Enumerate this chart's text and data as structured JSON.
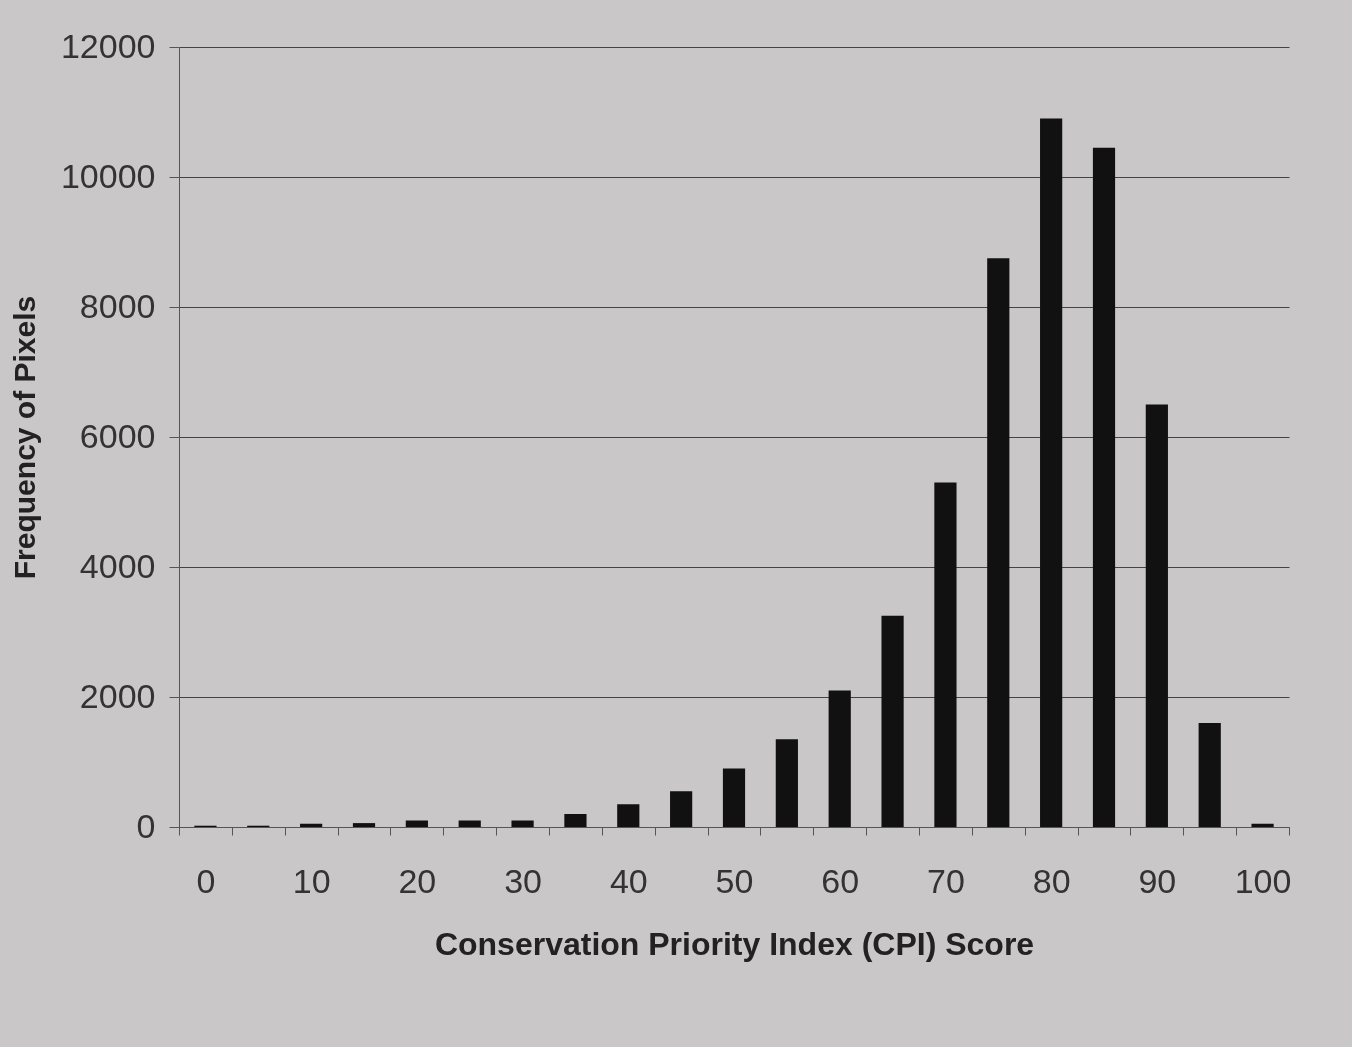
{
  "chart_data": {
    "type": "bar",
    "xlabel": "Conservation Priority Index (CPI) Score",
    "ylabel": "Frequency of  Pixels",
    "categories": [
      "0",
      null,
      "10",
      null,
      "20",
      null,
      "30",
      null,
      "40",
      null,
      "50",
      null,
      "60",
      null,
      "70",
      null,
      "80",
      null,
      "90",
      null,
      "100"
    ],
    "values": [
      20,
      20,
      50,
      60,
      100,
      100,
      100,
      200,
      350,
      550,
      900,
      1350,
      2100,
      3250,
      5300,
      8750,
      10900,
      10450,
      6500,
      1600,
      50
    ],
    "color": "#111111",
    "ylim": [
      0,
      12000
    ],
    "yticks": [
      0,
      2000,
      4000,
      6000,
      8000,
      10000,
      12000
    ],
    "grid": "y"
  }
}
